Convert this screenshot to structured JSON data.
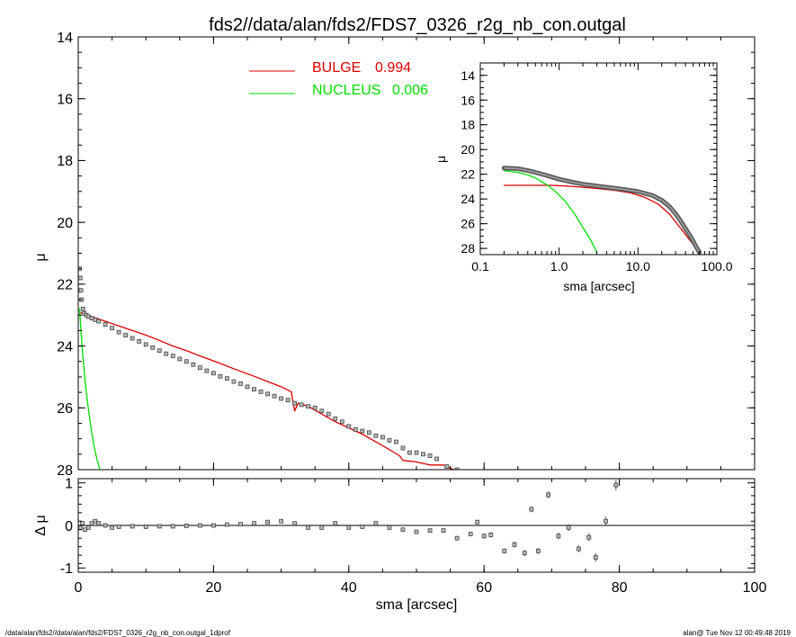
{
  "header": {
    "title": "fds2//data/alan/fds2/FDS7_0326_r2g_nb_con.outgal"
  },
  "footer": {
    "left": "/data/alan/fds2//data/alan/fds2/FDS7_0326_r2g_nb_con.outgal_1dprof",
    "right": "alan@  Tue Nov 12 00:49:48 2019"
  },
  "colors": {
    "bulge": "#dd0000",
    "nucleus": "#00dd00",
    "data": "#808080",
    "axes": "#000000"
  },
  "legend": [
    {
      "label": "BULGE",
      "value": "0.994",
      "color": "#dd0000"
    },
    {
      "label": "NUCLEUS",
      "value": "0.006",
      "color": "#00dd00"
    }
  ],
  "chart_data": [
    {
      "id": "main",
      "type": "scatter",
      "ylabel": "μ",
      "xlim": [
        0,
        100
      ],
      "ylim": [
        28,
        14
      ],
      "x_ticks": [
        0,
        20,
        40,
        60,
        80,
        100
      ],
      "x_tick_labels": [
        "",
        "",
        "",
        "",
        "",
        ""
      ],
      "y_ticks": [
        14,
        16,
        18,
        20,
        22,
        24,
        26,
        28
      ],
      "y_tick_labels": [
        "14",
        "16",
        "18",
        "20",
        "22",
        "24",
        "26",
        "28"
      ],
      "series": [
        {
          "name": "BULGE",
          "kind": "line",
          "color": "#dd0000",
          "x": [
            0.2,
            1,
            2,
            4,
            6,
            8,
            10,
            12,
            14,
            16,
            18,
            20,
            22,
            24,
            26,
            28,
            30,
            31.5,
            32,
            32.5,
            34,
            36,
            38,
            40,
            42,
            44,
            46,
            47.5,
            48,
            50,
            52,
            54,
            55.5
          ],
          "y": [
            22.9,
            23.0,
            23.05,
            23.2,
            23.35,
            23.5,
            23.65,
            23.82,
            24.0,
            24.15,
            24.32,
            24.48,
            24.65,
            24.82,
            24.98,
            25.15,
            25.32,
            25.48,
            26.1,
            25.85,
            25.95,
            26.2,
            26.45,
            26.65,
            26.85,
            27.1,
            27.35,
            27.55,
            27.7,
            27.75,
            27.85,
            27.85,
            28.0
          ]
        },
        {
          "name": "NUCLEUS",
          "kind": "line",
          "color": "#00dd00",
          "x": [
            0.2,
            0.4,
            0.6,
            0.8,
            1.0,
            1.3,
            1.6,
            2.0,
            2.4,
            2.8,
            3.2
          ],
          "y": [
            22.8,
            23.5,
            24.1,
            24.6,
            25.1,
            25.7,
            26.2,
            26.8,
            27.3,
            27.7,
            28.0
          ]
        },
        {
          "name": "data",
          "kind": "points",
          "color": "#808080",
          "x": [
            0.2,
            0.3,
            0.4,
            0.5,
            0.7,
            0.9,
            1.2,
            1.5,
            2,
            2.5,
            3,
            4,
            5,
            6,
            7,
            8,
            9,
            10,
            11,
            12,
            13,
            14,
            15,
            16,
            17,
            18,
            19,
            20,
            21,
            22,
            23,
            24,
            25,
            26,
            27,
            28,
            29,
            30,
            31,
            32,
            33,
            34,
            35,
            36,
            37,
            38,
            39,
            40,
            41,
            42,
            43,
            44,
            45,
            46,
            47,
            48,
            49,
            50,
            51,
            52,
            53,
            54.5,
            56
          ],
          "y": [
            21.5,
            21.8,
            22.2,
            22.5,
            22.8,
            22.95,
            23.0,
            23.05,
            23.1,
            23.15,
            23.2,
            23.3,
            23.42,
            23.55,
            23.65,
            23.75,
            23.85,
            23.95,
            24.05,
            24.15,
            24.25,
            24.32,
            24.42,
            24.5,
            24.6,
            24.7,
            24.8,
            24.88,
            24.98,
            25.05,
            25.15,
            25.22,
            25.32,
            25.4,
            25.48,
            25.55,
            25.62,
            25.7,
            25.75,
            25.85,
            25.9,
            25.95,
            26.0,
            26.1,
            26.2,
            26.35,
            26.45,
            26.6,
            26.7,
            26.75,
            26.8,
            26.9,
            26.95,
            27.05,
            27.1,
            27.3,
            27.45,
            27.45,
            27.5,
            27.55,
            27.65,
            27.9,
            28.0
          ]
        }
      ]
    },
    {
      "id": "residual",
      "type": "scatter",
      "xlabel": "sma [arcsec]",
      "ylabel": "Δ μ",
      "xlim": [
        0,
        100
      ],
      "ylim": [
        -1.1,
        1.1
      ],
      "x_ticks": [
        0,
        20,
        40,
        60,
        80,
        100
      ],
      "x_tick_labels": [
        "0",
        "20",
        "40",
        "60",
        "80",
        "100"
      ],
      "y_ticks": [
        -1,
        0,
        1
      ],
      "y_tick_labels": [
        "-1",
        "0",
        "1"
      ],
      "zero_line": true,
      "series": [
        {
          "name": "residual",
          "kind": "points",
          "color": "#808080",
          "x": [
            0.3,
            0.6,
            1.0,
            1.5,
            2.0,
            2.5,
            3,
            4,
            5,
            6,
            8,
            10,
            12,
            14,
            16,
            18,
            20,
            22,
            24,
            26,
            28,
            30,
            32,
            34,
            36,
            38,
            40,
            42,
            44,
            46,
            48,
            50,
            52,
            54,
            56,
            58,
            59,
            60,
            61,
            63,
            64.5,
            66,
            67,
            68,
            69.5,
            71,
            72.5,
            74,
            75.5,
            76.5,
            78,
            79.5
          ],
          "y": [
            -0.05,
            0.05,
            -0.1,
            -0.05,
            0.05,
            0.1,
            0.05,
            0.0,
            -0.05,
            -0.03,
            -0.02,
            -0.03,
            -0.02,
            -0.02,
            -0.01,
            0.0,
            0.0,
            0.02,
            0.03,
            0.05,
            0.08,
            0.1,
            0.05,
            -0.05,
            -0.05,
            0.05,
            -0.05,
            -0.03,
            0.05,
            -0.05,
            -0.1,
            -0.15,
            -0.12,
            -0.12,
            -0.3,
            -0.2,
            0.08,
            -0.25,
            -0.22,
            -0.6,
            -0.45,
            -0.65,
            0.38,
            -0.6,
            0.72,
            -0.25,
            -0.05,
            -0.55,
            -0.28,
            -0.75,
            0.1,
            0.95
          ],
          "err": [
            0.03,
            0.03,
            0.03,
            0.03,
            0.03,
            0.03,
            0.03,
            0.03,
            0.03,
            0.03,
            0.03,
            0.03,
            0.03,
            0.03,
            0.03,
            0.03,
            0.03,
            0.03,
            0.03,
            0.03,
            0.03,
            0.03,
            0.03,
            0.03,
            0.03,
            0.03,
            0.03,
            0.03,
            0.04,
            0.04,
            0.04,
            0.04,
            0.05,
            0.05,
            0.05,
            0.05,
            0.05,
            0.06,
            0.06,
            0.06,
            0.07,
            0.07,
            0.07,
            0.07,
            0.08,
            0.08,
            0.08,
            0.08,
            0.09,
            0.1,
            0.1,
            0.12
          ]
        }
      ]
    },
    {
      "id": "inset",
      "type": "line",
      "xlabel": "sma [arcsec]",
      "ylabel": "μ",
      "xscale": "log",
      "xlim": [
        0.1,
        100
      ],
      "ylim": [
        28.5,
        13
      ],
      "x_ticks": [
        0.1,
        1,
        10,
        100
      ],
      "x_tick_labels": [
        "0.1",
        "1.0",
        "10.0",
        "100.0"
      ],
      "y_ticks": [
        14,
        16,
        18,
        20,
        22,
        24,
        26,
        28
      ],
      "y_tick_labels": [
        "14",
        "16",
        "18",
        "20",
        "22",
        "24",
        "26",
        "28"
      ],
      "series": [
        {
          "name": "BULGE",
          "kind": "line",
          "color": "#dd0000",
          "x": [
            0.2,
            0.3,
            0.5,
            0.8,
            1.2,
            2,
            3,
            5,
            8,
            12,
            18,
            25,
            35,
            45,
            55,
            60
          ],
          "y": [
            22.9,
            22.9,
            22.9,
            22.9,
            22.95,
            23.05,
            23.15,
            23.3,
            23.5,
            23.85,
            24.4,
            25.2,
            26.4,
            27.3,
            28.0,
            28.4
          ]
        },
        {
          "name": "NUCLEUS",
          "kind": "line",
          "color": "#00dd00",
          "x": [
            0.2,
            0.3,
            0.4,
            0.5,
            0.7,
            0.9,
            1.2,
            1.6,
            2.0,
            2.5,
            3.0
          ],
          "y": [
            21.7,
            21.85,
            22.05,
            22.3,
            22.85,
            23.4,
            24.2,
            25.3,
            26.3,
            27.3,
            28.3
          ]
        },
        {
          "name": "data",
          "kind": "thick",
          "color": "#555555",
          "x": [
            0.2,
            0.3,
            0.4,
            0.5,
            0.7,
            1.0,
            1.5,
            2,
            3,
            4,
            5,
            7,
            10,
            15,
            20,
            25,
            30,
            35,
            40,
            45,
            50,
            55,
            60
          ],
          "y": [
            21.5,
            21.55,
            21.7,
            21.85,
            22.1,
            22.4,
            22.65,
            22.8,
            22.95,
            23.05,
            23.12,
            23.25,
            23.4,
            23.7,
            24.1,
            24.6,
            25.2,
            25.8,
            26.4,
            26.9,
            27.4,
            27.9,
            28.3
          ]
        }
      ]
    }
  ]
}
